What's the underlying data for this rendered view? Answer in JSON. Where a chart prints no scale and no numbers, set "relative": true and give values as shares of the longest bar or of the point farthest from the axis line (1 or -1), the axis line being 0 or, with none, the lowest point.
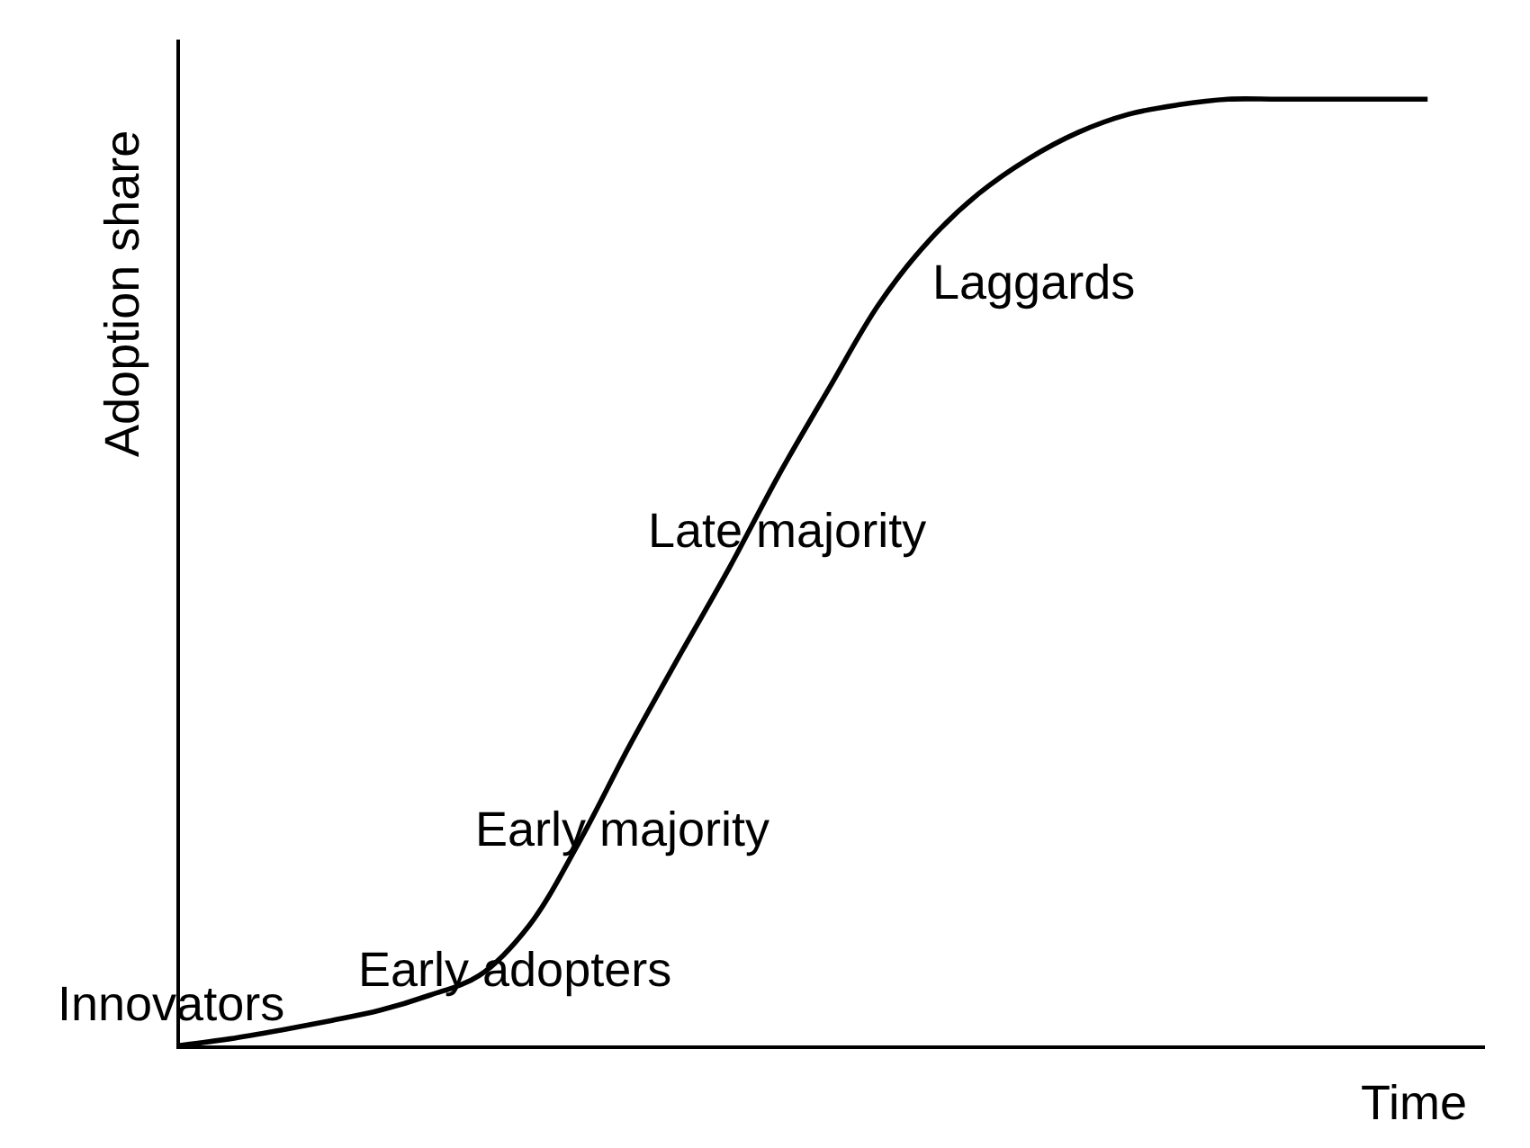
{
  "chart_data": {
    "type": "line",
    "xlabel": "Time",
    "ylabel": "Adoption share",
    "categories": [
      null,
      null,
      null,
      null,
      null,
      null,
      null,
      null,
      null,
      null,
      null,
      null,
      null,
      null,
      null,
      null,
      null,
      null,
      null,
      null,
      null,
      null,
      null,
      null,
      null,
      null
    ],
    "relative": true,
    "series": [
      {
        "color": "#000000",
        "values": [
          0,
          0.007,
          0.016,
          0.026,
          0.037,
          0.053,
          0.074,
          0.127,
          0.215,
          0.316,
          0.411,
          0.504,
          0.603,
          0.694,
          0.783,
          0.85,
          0.9,
          0.937,
          0.965,
          0.984,
          0.994,
          1,
          1,
          1,
          1,
          1
        ]
      }
    ],
    "annotations": [
      "Innovators",
      "Early adopters",
      "Early majority",
      "Late majority",
      "Laggards"
    ],
    "marker": "none",
    "line_style": "solid"
  }
}
